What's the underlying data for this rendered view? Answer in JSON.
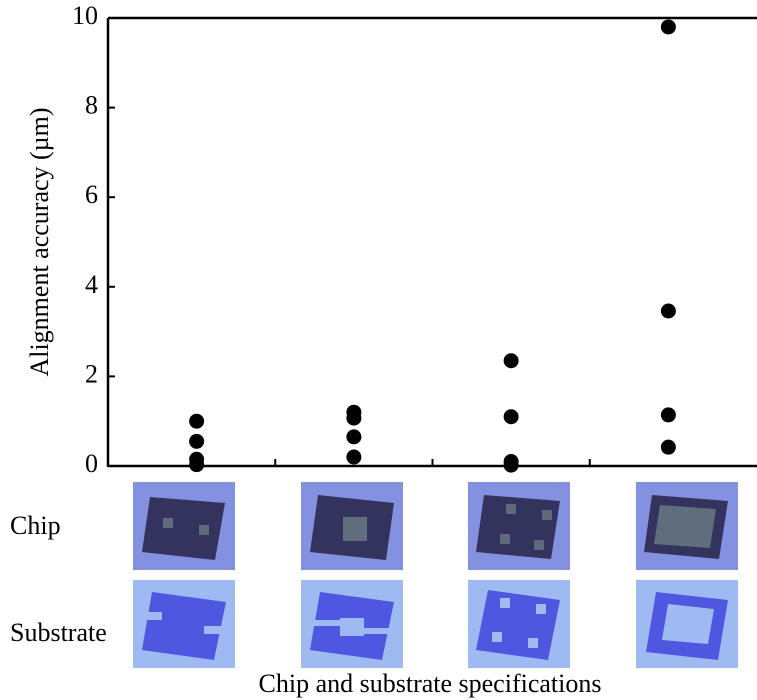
{
  "chart_data": {
    "type": "strip",
    "y_label": "Alignment accuracy (µm)",
    "x_label": "Chip and substrate specifications",
    "row_labels": [
      "Chip",
      "Substrate"
    ],
    "categories": [
      null,
      null,
      null,
      null
    ],
    "values": [
      [
        1.0,
        0.55,
        0.15,
        0.03
      ],
      [
        1.2,
        1.07,
        0.65,
        0.2
      ],
      [
        2.35,
        1.1,
        0.1,
        0.02
      ],
      [
        9.8,
        3.46,
        1.14,
        0.42
      ]
    ],
    "color": "#000000",
    "ylim": [
      0,
      10
    ],
    "yticks": [
      0,
      2,
      4,
      6,
      8,
      10
    ],
    "grid": false
  }
}
